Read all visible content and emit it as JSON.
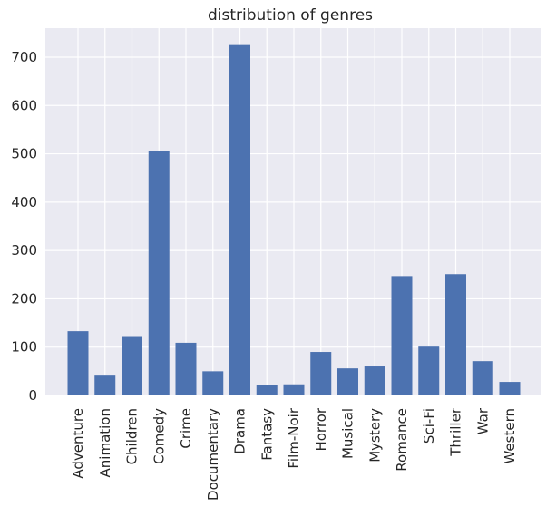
{
  "chart_data": {
    "type": "bar",
    "title": "distribution of genres",
    "xlabel": "",
    "ylabel": "",
    "categories": [
      "Adventure",
      "Animation",
      "Children",
      "Comedy",
      "Crime",
      "Documentary",
      "Drama",
      "Fantasy",
      "Film-Noir",
      "Horror",
      "Musical",
      "Mystery",
      "Romance",
      "Sci-Fi",
      "Thriller",
      "War",
      "Western"
    ],
    "values": [
      133,
      41,
      121,
      505,
      109,
      50,
      725,
      22,
      23,
      90,
      56,
      60,
      247,
      101,
      251,
      71,
      28
    ],
    "ylim": [
      0,
      760
    ],
    "yticks": [
      0,
      100,
      200,
      300,
      400,
      500,
      600,
      700
    ],
    "grid": true,
    "bar_color": "#4c72b0",
    "background_color": "#eaeaf2",
    "grid_color": "#ffffff"
  }
}
